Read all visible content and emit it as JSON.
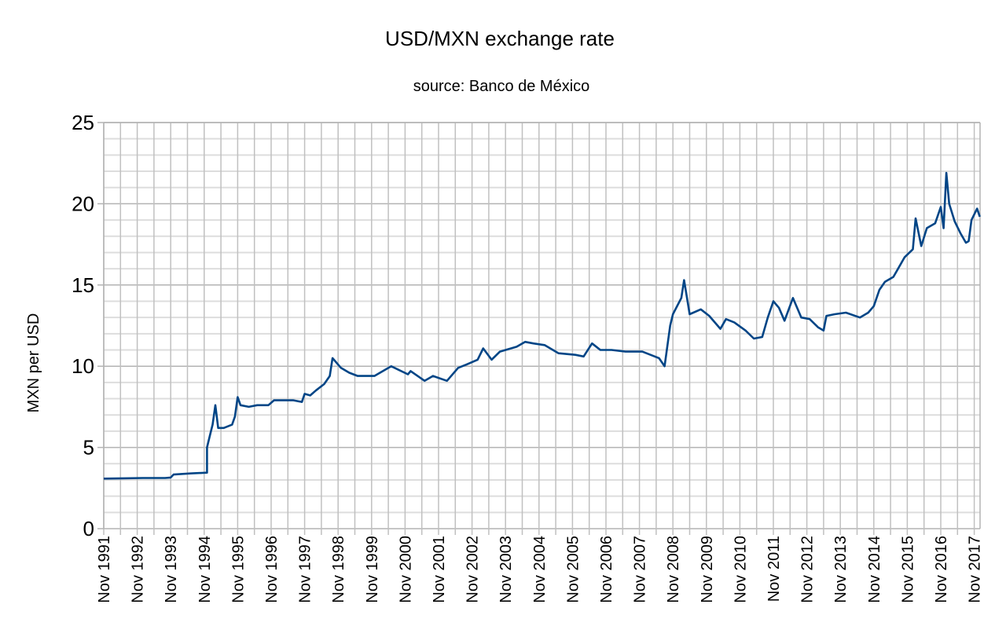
{
  "chart_data": {
    "type": "line",
    "title": "USD/MXN exchange rate",
    "subtitle": "source: Banco de México",
    "xlabel": "",
    "ylabel": "MXN per USD",
    "ylim": [
      0,
      25
    ],
    "yticks": [
      0,
      5,
      10,
      15,
      20,
      25
    ],
    "xlim": [
      "1991-11",
      "2018-01"
    ],
    "xtick_labels": [
      "Nov 1991",
      "Nov 1992",
      "Nov 1993",
      "Nov 1994",
      "Nov 1995",
      "Nov 1996",
      "Nov 1997",
      "Nov 1998",
      "Nov 1999",
      "Nov 2000",
      "Nov 2001",
      "Nov 2002",
      "Nov 2003",
      "Nov 2004",
      "Nov 2005",
      "Nov 2006",
      "Nov 2007",
      "Nov 2008",
      "Nov 2009",
      "Nov 2010",
      "Nov 2011",
      "Nov 2012",
      "Nov 2013",
      "Nov 2014",
      "Nov 2015",
      "Nov 2016",
      "Nov 2017"
    ],
    "grid": true,
    "legend": "none",
    "line_color": "#004586",
    "series": [
      {
        "x": [
          "1991-11",
          "1992-06",
          "1993-01",
          "1993-09",
          "1993-11",
          "1993-12",
          "1994-06",
          "1994-12",
          "1994-12",
          "1995-01",
          "1995-02",
          "1995-03",
          "1995-04",
          "1995-06",
          "1995-09",
          "1995-10",
          "1995-11",
          "1995-12",
          "1996-03",
          "1996-06",
          "1996-10",
          "1996-12",
          "1997-03",
          "1997-07",
          "1997-10",
          "1997-11",
          "1998-01",
          "1998-03",
          "1998-06",
          "1998-08",
          "1998-09",
          "1998-12",
          "1999-03",
          "1999-06",
          "1999-12",
          "2000-06",
          "2000-12",
          "2001-01",
          "2001-06",
          "2001-09",
          "2002-02",
          "2002-06",
          "2002-09",
          "2003-01",
          "2003-03",
          "2003-06",
          "2003-09",
          "2004-03",
          "2004-06",
          "2004-09",
          "2005-01",
          "2005-06",
          "2005-12",
          "2006-03",
          "2006-06",
          "2006-09",
          "2007-01",
          "2007-06",
          "2007-12",
          "2008-06",
          "2008-08",
          "2008-10",
          "2008-11",
          "2009-02",
          "2009-03",
          "2009-05",
          "2009-09",
          "2009-12",
          "2010-04",
          "2010-06",
          "2010-09",
          "2011-01",
          "2011-04",
          "2011-07",
          "2011-09",
          "2011-11",
          "2012-01",
          "2012-03",
          "2012-06",
          "2012-09",
          "2012-12",
          "2013-03",
          "2013-05",
          "2013-06",
          "2013-09",
          "2014-01",
          "2014-06",
          "2014-09",
          "2014-11",
          "2015-01",
          "2015-03",
          "2015-06",
          "2015-10",
          "2016-01",
          "2016-02",
          "2016-04",
          "2016-06",
          "2016-09",
          "2016-11",
          "2016-12",
          "2017-01",
          "2017-02",
          "2017-04",
          "2017-06",
          "2017-08",
          "2017-09",
          "2017-10",
          "2017-12",
          "2018-01"
        ],
        "values": [
          3.08,
          3.1,
          3.12,
          3.12,
          3.15,
          3.33,
          3.4,
          3.45,
          5.0,
          5.7,
          6.4,
          7.6,
          6.2,
          6.2,
          6.4,
          6.9,
          8.1,
          7.6,
          7.5,
          7.6,
          7.6,
          7.9,
          7.9,
          7.9,
          7.8,
          8.3,
          8.2,
          8.5,
          8.9,
          9.4,
          10.5,
          9.9,
          9.6,
          9.4,
          9.4,
          10.0,
          9.5,
          9.7,
          9.1,
          9.4,
          9.1,
          9.9,
          10.1,
          10.4,
          11.1,
          10.4,
          10.9,
          11.2,
          11.5,
          11.4,
          11.3,
          10.8,
          10.7,
          10.6,
          11.4,
          11.0,
          11.0,
          10.9,
          10.9,
          10.5,
          10.0,
          12.5,
          13.2,
          14.2,
          15.3,
          13.2,
          13.5,
          13.1,
          12.3,
          12.9,
          12.7,
          12.2,
          11.7,
          11.8,
          13.0,
          14.0,
          13.6,
          12.8,
          14.2,
          13.0,
          12.9,
          12.4,
          12.2,
          13.1,
          13.2,
          13.3,
          13.0,
          13.3,
          13.7,
          14.7,
          15.2,
          15.5,
          16.7,
          17.2,
          19.1,
          17.4,
          18.5,
          18.8,
          19.8,
          18.5,
          21.9,
          20.0,
          18.9,
          18.2,
          17.6,
          17.7,
          19.0,
          19.7,
          19.2
        ]
      }
    ]
  }
}
